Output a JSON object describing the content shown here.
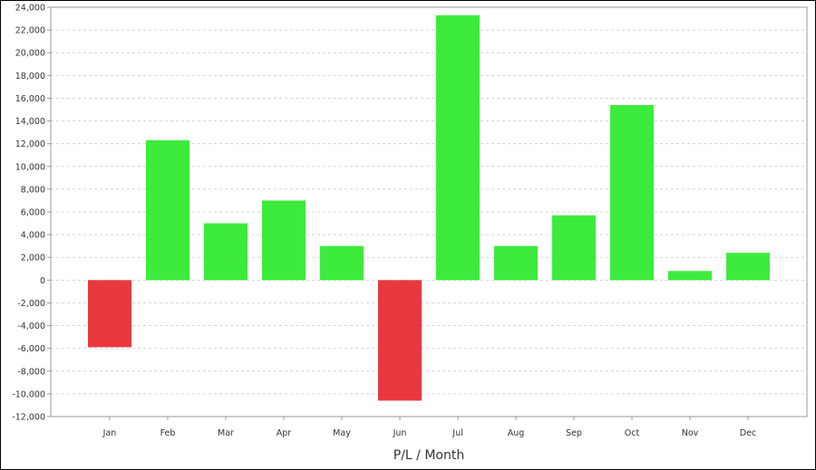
{
  "chart_data": {
    "type": "bar",
    "title": "",
    "xlabel": "P/L / Month",
    "ylabel": "",
    "categories": [
      "Jan",
      "Feb",
      "Mar",
      "Apr",
      "May",
      "Jun",
      "Jul",
      "Aug",
      "Sep",
      "Oct",
      "Nov",
      "Dec"
    ],
    "values": [
      -5900,
      12300,
      5000,
      7000,
      3000,
      -10600,
      23300,
      3000,
      5700,
      15400,
      800,
      2400
    ],
    "ylim": [
      -12000,
      24000
    ],
    "yticks": [
      -12000,
      -10000,
      -8000,
      -6000,
      -4000,
      -2000,
      0,
      2000,
      4000,
      6000,
      8000,
      10000,
      12000,
      14000,
      16000,
      18000,
      20000,
      22000,
      24000
    ],
    "ytick_labels": [
      "-12,000",
      "-10,000",
      "-8,000",
      "-6,000",
      "-4,000",
      "-2,000",
      "0",
      "2,000",
      "4,000",
      "6,000",
      "8,000",
      "10,000",
      "12,000",
      "14,000",
      "16,000",
      "18,000",
      "20,000",
      "22,000",
      "24,000"
    ],
    "grid": true,
    "legend": "none",
    "colors": {
      "positive": "#3deb3d",
      "negative": "#e8383d",
      "grid": "#d4d4d4",
      "axis": "#999999"
    }
  }
}
